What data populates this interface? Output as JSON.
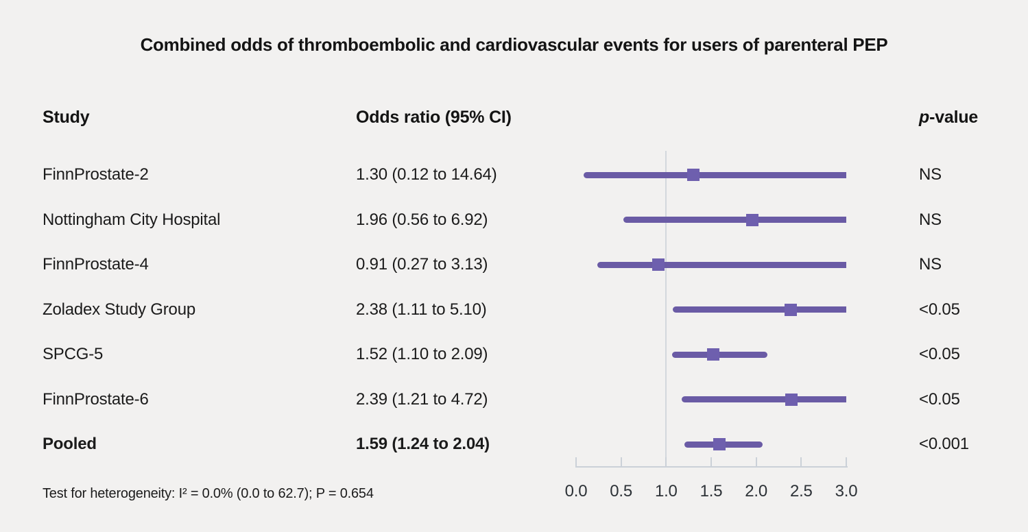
{
  "title": "Combined odds of thromboembolic and cardiovascular events for users of parenteral PEP",
  "columns": {
    "study": "Study",
    "odds_ratio": "Odds ratio (95% CI)",
    "pvalue_italic": "p",
    "pvalue_rest": "-value"
  },
  "footer": "Test for heterogeneity: I² = 0.0% (0.0 to 62.7); P = 0.654",
  "colors": {
    "background": "#f2f1f0",
    "ci_line": "#6a5ba5",
    "marker": "#6e5fae",
    "axis": "#cbd1d8",
    "reference_line": "#d3d8dd",
    "text": "#1b1b1b"
  },
  "chart_data": {
    "type": "scatter",
    "variant": "forest_plot",
    "title": "Combined odds of thromboembolic and cardiovascular events for users of parenteral PEP",
    "xlabel": "",
    "ylabel": "",
    "x_axis": {
      "range": [
        0.0,
        3.0
      ],
      "tick_values": [
        0.0,
        0.5,
        1.0,
        1.5,
        2.0,
        2.5,
        3.0
      ],
      "tick_labels": [
        "0.0",
        "0.5",
        "1.0",
        "1.5",
        "2.0",
        "2.5",
        "3.0"
      ],
      "reference_line": 1.0
    },
    "grid": false,
    "legend": "none",
    "rows": [
      {
        "study": "FinnProstate-2",
        "or": 1.3,
        "ci_low": 0.12,
        "ci_high": 14.64,
        "or_label": "1.30 (0.12 to 14.64)",
        "p": "NS",
        "bold": false
      },
      {
        "study": "Nottingham City Hospital",
        "or": 1.96,
        "ci_low": 0.56,
        "ci_high": 6.92,
        "or_label": "1.96 (0.56 to 6.92)",
        "p": "NS",
        "bold": false
      },
      {
        "study": "FinnProstate-4",
        "or": 0.91,
        "ci_low": 0.27,
        "ci_high": 3.13,
        "or_label": "0.91 (0.27 to 3.13)",
        "p": "NS",
        "bold": false
      },
      {
        "study": "Zoladex Study Group",
        "or": 2.38,
        "ci_low": 1.11,
        "ci_high": 5.1,
        "or_label": "2.38 (1.11 to 5.10)",
        "p": "<0.05",
        "bold": false
      },
      {
        "study": "SPCG-5",
        "or": 1.52,
        "ci_low": 1.1,
        "ci_high": 2.09,
        "or_label": "1.52 (1.10 to 2.09)",
        "p": "<0.05",
        "bold": false
      },
      {
        "study": "FinnProstate-6",
        "or": 2.39,
        "ci_low": 1.21,
        "ci_high": 4.72,
        "or_label": "2.39 (1.21 to 4.72)",
        "p": "<0.05",
        "bold": false
      },
      {
        "study": "Pooled",
        "or": 1.59,
        "ci_low": 1.24,
        "ci_high": 2.04,
        "or_label": "1.59 (1.24 to 2.04)",
        "p": "<0.001",
        "bold": true
      }
    ]
  }
}
